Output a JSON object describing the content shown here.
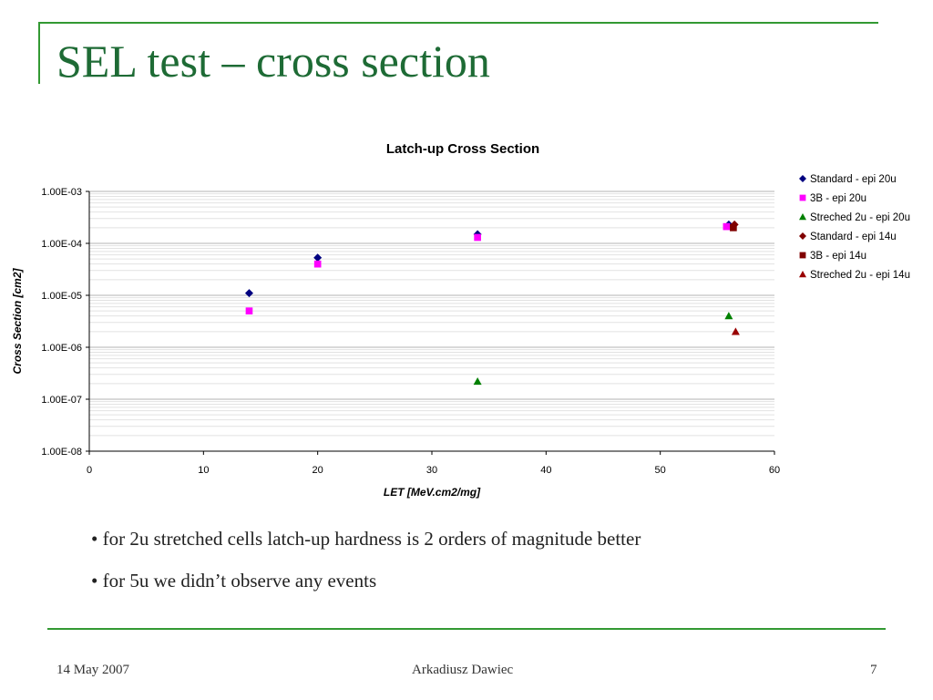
{
  "slide": {
    "title": "SEL test – cross section",
    "bullets": [
      "• for 2u stretched cells latch-up hardness is 2 orders of magnitude better",
      "• for 5u we didn’t observe any events"
    ],
    "footer": {
      "date": "14 May 2007",
      "author": "Arkadiusz Dawiec",
      "page": "7"
    }
  },
  "colors": {
    "accent": "#339933",
    "title": "#1e6b35"
  },
  "chart_data": {
    "type": "scatter",
    "title": "Latch-up  Cross Section",
    "xlabel": "LET [MeV.cm2/mg]",
    "ylabel": "Cross Section [cm2]",
    "xlim": [
      0,
      60
    ],
    "xticks": [
      0,
      10,
      20,
      30,
      40,
      50,
      60
    ],
    "ylim": [
      1e-08,
      0.001
    ],
    "yscale": "log",
    "yticks": [
      0.001,
      0.0001,
      1e-05,
      1e-06,
      1e-07,
      1e-08
    ],
    "ytick_labels": [
      "1.00E-03",
      "1.00E-04",
      "1.00E-05",
      "1.00E-06",
      "1.00E-07",
      "1.00E-08"
    ],
    "grid": true,
    "legend": "right",
    "series": [
      {
        "name": "Standard - epi 20u",
        "marker": "diamond",
        "color": "#000080",
        "points": [
          [
            14,
            1.1e-05
          ],
          [
            20,
            5.3e-05
          ],
          [
            34,
            0.00015
          ],
          [
            56,
            0.00023
          ]
        ]
      },
      {
        "name": "3B - epi 20u",
        "marker": "square",
        "color": "#ff00ff",
        "points": [
          [
            14,
            5e-06
          ],
          [
            20,
            4e-05
          ],
          [
            34,
            0.00013
          ],
          [
            55.8,
            0.00021
          ]
        ]
      },
      {
        "name": "Streched 2u - epi 20u",
        "marker": "triangle",
        "color": "#008000",
        "points": [
          [
            34,
            2.2e-07
          ],
          [
            56,
            4e-06
          ]
        ]
      },
      {
        "name": "Standard - epi 14u",
        "marker": "diamond",
        "color": "#800000",
        "points": [
          [
            56.5,
            0.00023
          ]
        ]
      },
      {
        "name": "3B - epi 14u",
        "marker": "square",
        "color": "#800000",
        "points": [
          [
            56.4,
            0.0002
          ]
        ]
      },
      {
        "name": "Streched 2u - epi 14u",
        "marker": "triangle",
        "color": "#990000",
        "points": [
          [
            56.6,
            2e-06
          ]
        ]
      }
    ]
  }
}
